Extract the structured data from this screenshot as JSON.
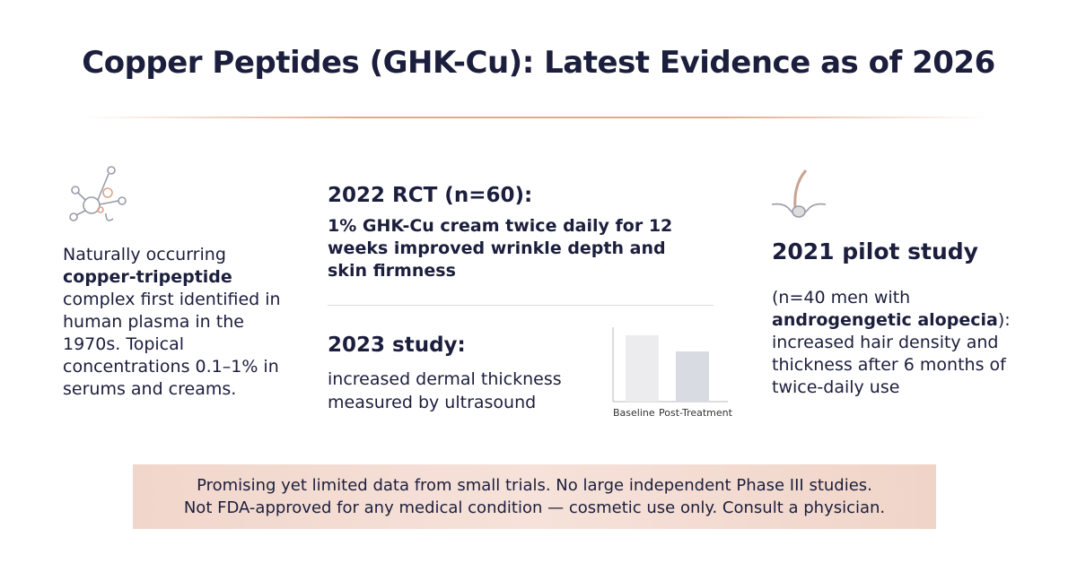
{
  "header": {
    "title": "Copper Peptides (GHK-Cu): Latest Evidence as of 2026"
  },
  "left": {
    "text": [
      "Naturally occurring ",
      "copper-tripeptide",
      " complex first identified in human plasma in the 1970s. Topical concentrations 0.1–1% in serums and creams."
    ]
  },
  "middle": {
    "rct": {
      "heading": "2022 RCT (n=60):",
      "body": "1% GHK-Cu cream twice daily for 12 weeks improved wrinkle depth and skin firmness"
    },
    "study": {
      "heading": "2023 study:",
      "body": "increased dermal thickness measured by ultrasound"
    },
    "chart": {
      "categories": [
        "Baseline",
        "Post-Treatment"
      ],
      "values": [
        74,
        56
      ],
      "colors": [
        "#ececef",
        "#d9dbe3"
      ]
    }
  },
  "right": {
    "heading": "2021 pilot study",
    "text": [
      "(n=40 men with ",
      "androgengetic alopecia",
      "): increased hair density and thickness after 6 months of twice-daily use"
    ]
  },
  "footer": {
    "lines": [
      "Promising yet limited data from small trials. No large independent Phase III studies.",
      "Not FDA-approved for any medical condition — cosmetic use only. Consult a physician."
    ]
  }
}
